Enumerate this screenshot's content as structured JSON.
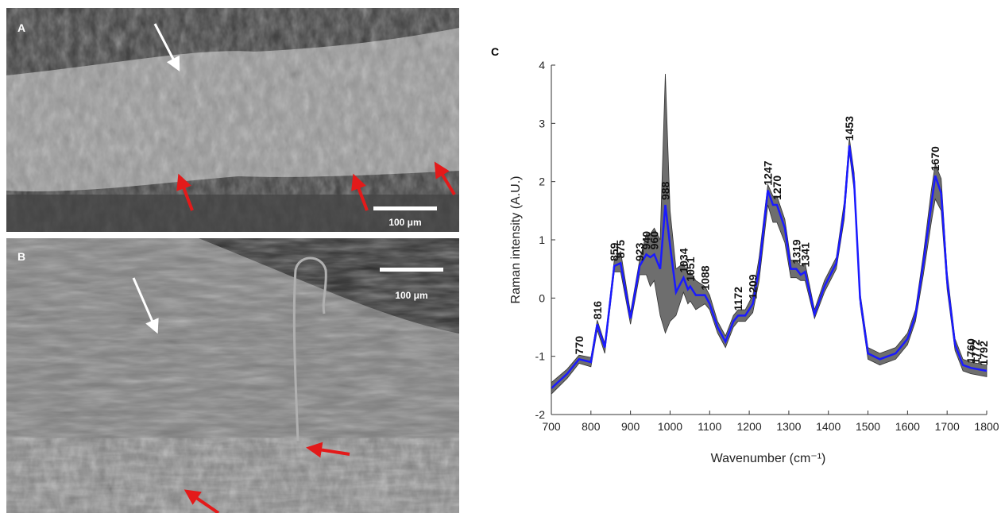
{
  "figure": {
    "panel_a": {
      "label": "A",
      "scale_bar": "100 μm"
    },
    "panel_b": {
      "label": "B",
      "scale_bar": "100 μm"
    },
    "panel_c": {
      "label": "C"
    }
  },
  "chart_data": {
    "type": "line",
    "x_label": "Wavenumber (cm⁻¹)",
    "y_label": "Raman intensity (A.U.)",
    "x": [
      700,
      740,
      770,
      800,
      816,
      835,
      859,
      875,
      900,
      923,
      940,
      950,
      960,
      975,
      988,
      1000,
      1015,
      1034,
      1045,
      1051,
      1065,
      1088,
      1100,
      1120,
      1140,
      1160,
      1172,
      1190,
      1209,
      1225,
      1247,
      1260,
      1270,
      1290,
      1305,
      1319,
      1330,
      1341,
      1365,
      1390,
      1420,
      1440,
      1453,
      1465,
      1480,
      1500,
      1530,
      1570,
      1600,
      1620,
      1640,
      1660,
      1670,
      1685,
      1700,
      1720,
      1740,
      1760,
      1800
    ],
    "series": [
      {
        "color": "#1a1aff",
        "values": [
          -1.55,
          -1.3,
          -1.05,
          -1.1,
          -0.45,
          -0.85,
          0.55,
          0.6,
          -0.35,
          0.55,
          0.75,
          0.7,
          0.75,
          0.5,
          1.6,
          0.9,
          0.1,
          0.35,
          0.15,
          0.2,
          0.05,
          0.05,
          -0.1,
          -0.5,
          -0.75,
          -0.4,
          -0.3,
          -0.3,
          -0.1,
          0.5,
          1.85,
          1.6,
          1.6,
          1.2,
          0.5,
          0.5,
          0.4,
          0.45,
          -0.28,
          0.2,
          0.6,
          1.5,
          2.62,
          2.0,
          0.0,
          -0.95,
          -1.05,
          -0.95,
          -0.7,
          -0.3,
          0.6,
          1.6,
          2.1,
          1.8,
          0.3,
          -0.8,
          -1.15,
          -1.2,
          -1.25
        ]
      }
    ],
    "band": {
      "color": "#6e6e6e",
      "lower": [
        -1.65,
        -1.38,
        -1.12,
        -1.18,
        -0.55,
        -0.95,
        0.45,
        0.45,
        -0.45,
        0.4,
        0.4,
        0.2,
        0.3,
        -0.3,
        -0.6,
        -0.4,
        -0.3,
        0.1,
        -0.1,
        -0.05,
        -0.2,
        -0.1,
        -0.2,
        -0.6,
        -0.85,
        -0.5,
        -0.4,
        -0.4,
        -0.25,
        0.3,
        1.6,
        1.3,
        1.3,
        0.95,
        0.35,
        0.35,
        0.3,
        0.3,
        -0.35,
        0.1,
        0.5,
        1.35,
        2.5,
        1.85,
        -0.1,
        -1.05,
        -1.15,
        -1.05,
        -0.8,
        -0.4,
        0.4,
        1.3,
        1.7,
        1.5,
        0.15,
        -0.9,
        -1.25,
        -1.3,
        -1.35
      ],
      "upper": [
        -1.45,
        -1.22,
        -0.98,
        -1.02,
        -0.38,
        -0.78,
        0.65,
        0.8,
        -0.25,
        0.65,
        1.1,
        1.1,
        1.2,
        1.0,
        3.85,
        1.5,
        0.5,
        0.6,
        0.4,
        0.45,
        0.3,
        0.2,
        0.05,
        -0.4,
        -0.65,
        -0.3,
        -0.2,
        -0.2,
        0.05,
        0.7,
        1.95,
        1.75,
        1.75,
        1.35,
        0.65,
        0.65,
        0.55,
        0.6,
        -0.2,
        0.3,
        0.7,
        1.65,
        2.75,
        2.15,
        0.1,
        -0.85,
        -0.95,
        -0.85,
        -0.6,
        -0.2,
        0.75,
        1.85,
        2.3,
        2.05,
        0.45,
        -0.7,
        -1.05,
        -1.1,
        -1.15
      ]
    },
    "peak_labels": [
      770,
      816,
      859,
      875,
      923,
      940,
      960,
      988,
      1034,
      1051,
      1088,
      1172,
      1209,
      1247,
      1270,
      1319,
      1341,
      1453,
      1670,
      1760,
      1772,
      1792
    ],
    "xlim": [
      700,
      1800
    ],
    "xticks": [
      700,
      800,
      900,
      1000,
      1100,
      1200,
      1300,
      1400,
      1500,
      1600,
      1700,
      1800
    ],
    "ylim": [
      -2,
      4
    ],
    "yticks": [
      -2,
      -1,
      0,
      1,
      2,
      3,
      4
    ]
  }
}
